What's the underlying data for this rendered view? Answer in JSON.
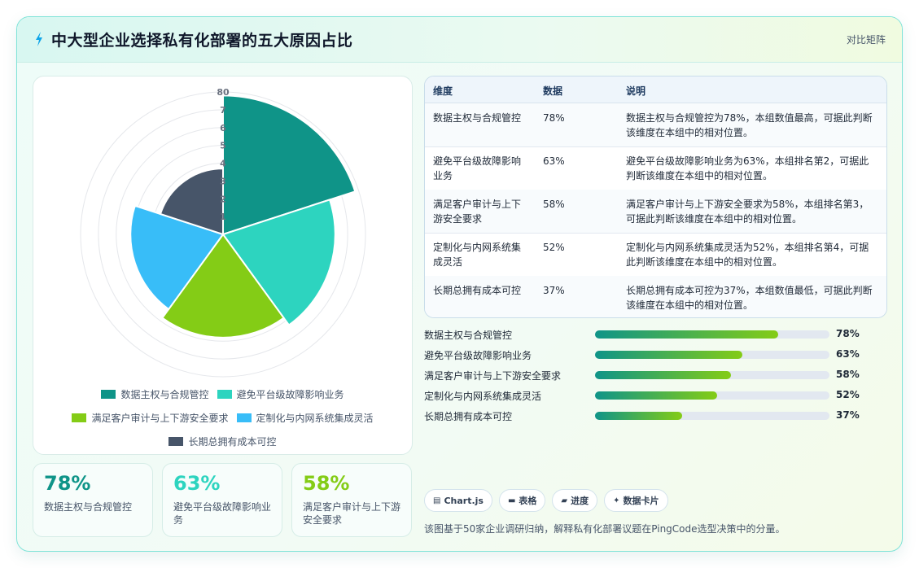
{
  "header": {
    "title": "中大型企业选择私有化部署的五大原因占比",
    "tag": "对比矩阵"
  },
  "chart_data": {
    "type": "polarArea",
    "categories": [
      "数据主权与合规管控",
      "避免平台级故障影响业务",
      "满足客户审计与上下游安全要求",
      "定制化与内网系统集成灵活",
      "长期总拥有成本可控"
    ],
    "values": [
      78,
      63,
      58,
      52,
      37
    ],
    "colors": [
      "#0f9488",
      "#2dd4bf",
      "#84cc16",
      "#38bdf8",
      "#475569"
    ],
    "rmax": 80,
    "ticks": [
      "1",
      "2",
      "3",
      "4",
      "5",
      "6",
      "7",
      "80"
    ],
    "legend_position": "bottom"
  },
  "kpis": [
    {
      "value": "78%",
      "label": "数据主权与合规管控",
      "color": "#0f9488"
    },
    {
      "value": "63%",
      "label": "避免平台级故障影响业务",
      "color": "#2dd4bf"
    },
    {
      "value": "58%",
      "label": "满足客户审计与上下游安全要求",
      "color": "#84cc16"
    }
  ],
  "table": {
    "headers": [
      "维度",
      "数据",
      "说明"
    ],
    "rows": [
      [
        "数据主权与合规管控",
        "78%",
        "数据主权与合规管控为78%，本组数值最高，可据此判断该维度在本组中的相对位置。"
      ],
      [
        "避免平台级故障影响业务",
        "63%",
        "避免平台级故障影响业务为63%，本组排名第2，可据此判断该维度在本组中的相对位置。"
      ],
      [
        "满足客户审计与上下游安全要求",
        "58%",
        "满足客户审计与上下游安全要求为58%，本组排名第3，可据此判断该维度在本组中的相对位置。"
      ],
      [
        "定制化与内网系统集成灵活",
        "52%",
        "定制化与内网系统集成灵活为52%，本组排名第4，可据此判断该维度在本组中的相对位置。"
      ],
      [
        "长期总拥有成本可控",
        "37%",
        "长期总拥有成本可控为37%，本组数值最低，可据此判断该维度在本组中的相对位置。"
      ]
    ]
  },
  "progress": [
    {
      "label": "数据主权与合规管控",
      "value": "78%",
      "fraction": 0.78
    },
    {
      "label": "避免平台级故障影响业务",
      "value": "63%",
      "fraction": 0.63
    },
    {
      "label": "满足客户审计与上下游安全要求",
      "value": "58%",
      "fraction": 0.58
    },
    {
      "label": "定制化与内网系统集成灵活",
      "value": "52%",
      "fraction": 0.52
    },
    {
      "label": "长期总拥有成本可控",
      "value": "37%",
      "fraction": 0.37
    }
  ],
  "chips": [
    {
      "icon": "chart-icon",
      "label": "Chart.js"
    },
    {
      "icon": "table-icon",
      "label": "表格"
    },
    {
      "icon": "progress-icon",
      "label": "进度"
    },
    {
      "icon": "sparkle-icon",
      "label": "数据卡片"
    }
  ],
  "footnote": "该图基于50家企业调研归纳，解释私有化部署议题在PingCode选型决策中的分量。"
}
